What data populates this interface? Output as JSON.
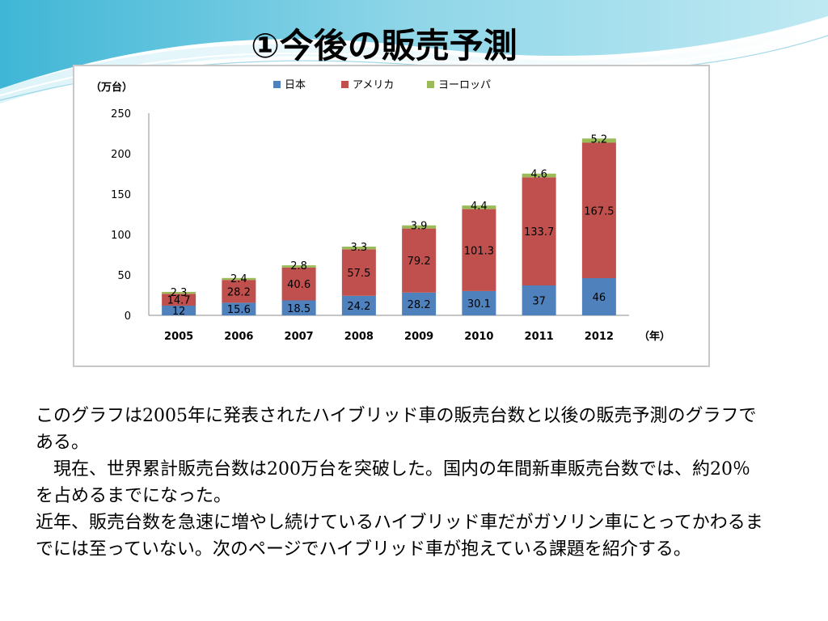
{
  "slide": {
    "title": "①今後の販売予測",
    "paragraphs": [
      "このグラフは2005年に発表されたハイブリッド車の販売台数と以後の販売予測のグラフである。",
      "　現在、世界累計販売台数は200万台を突破した。国内の年間新車販売台数では、約20％を占めるまでになった。",
      "近年、販売台数を急速に増やし続けているハイブリッド車だがガソリン車にとってかわるまでには至っていない。次のページでハイブリッド車が抱えている課題を紹介する。"
    ]
  },
  "chart_data": {
    "type": "bar",
    "stacked": true,
    "categories": [
      "2005",
      "2006",
      "2007",
      "2008",
      "2009",
      "2010",
      "2011",
      "2012"
    ],
    "series": [
      {
        "name": "日本",
        "color": "#4f81bd",
        "values": [
          12,
          15.6,
          18.5,
          24.2,
          28.2,
          30.1,
          37,
          46
        ]
      },
      {
        "name": "アメリカ",
        "color": "#c0504d",
        "values": [
          14.7,
          28.2,
          40.6,
          57.5,
          79.2,
          101.3,
          133.7,
          167.5
        ]
      },
      {
        "name": "ヨーロッパ",
        "color": "#9bbb59",
        "values": [
          2.3,
          2.4,
          2.8,
          3.3,
          3.9,
          4.4,
          4.6,
          5.2
        ]
      }
    ],
    "ylabel": "（万台）",
    "xlabel": "（年）",
    "ylim": [
      0,
      250
    ],
    "yticks": [
      0,
      50,
      100,
      150,
      200,
      250
    ],
    "legend_position": "top",
    "grid": false
  }
}
